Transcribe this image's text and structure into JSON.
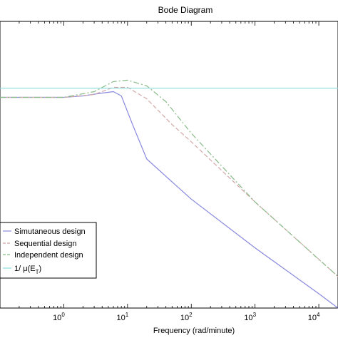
{
  "chart_data": {
    "type": "line",
    "title": "Bode Diagram",
    "xlabel": "Frequency  (rad/minute)",
    "ylabel": "",
    "xscale": "log",
    "xlim": [
      0.1,
      20000
    ],
    "ylim": [
      0,
      1
    ],
    "grid": false,
    "legend_position": "bottom-left",
    "x_ticks": [
      {
        "value": 1,
        "base": "10",
        "exp": "0"
      },
      {
        "value": 10,
        "base": "10",
        "exp": "1"
      },
      {
        "value": 100,
        "base": "10",
        "exp": "2"
      },
      {
        "value": 1000,
        "base": "10",
        "exp": "3"
      },
      {
        "value": 10000,
        "base": "10",
        "exp": "4"
      }
    ],
    "series": [
      {
        "name": "Simutaneous design",
        "color": "#8888dd",
        "dash": "none",
        "x": [
          0.1,
          1,
          2,
          4,
          6,
          8,
          12,
          20,
          50,
          100,
          1000,
          10000,
          20000
        ],
        "y": [
          0.735,
          0.735,
          0.74,
          0.75,
          0.755,
          0.74,
          0.64,
          0.52,
          0.44,
          0.38,
          0.21,
          0.05,
          0.0
        ]
      },
      {
        "name": "Sequential design",
        "color": "#d4a8a8",
        "dash": "6,3",
        "x": [
          0.1,
          1,
          3,
          6,
          10,
          20,
          50,
          100,
          1000,
          10000,
          20000
        ],
        "y": [
          0.735,
          0.735,
          0.745,
          0.77,
          0.77,
          0.73,
          0.64,
          0.58,
          0.37,
          0.17,
          0.11
        ]
      },
      {
        "name": "Independent design",
        "color": "#88bb88",
        "dash": "8,3,2,3",
        "x": [
          0.1,
          1,
          3,
          6,
          10,
          20,
          40,
          100,
          1000,
          10000,
          20000
        ],
        "y": [
          0.735,
          0.735,
          0.755,
          0.79,
          0.795,
          0.775,
          0.72,
          0.61,
          0.37,
          0.17,
          0.11
        ]
      },
      {
        "name": "1/ μ(E",
        "name_sub": "T",
        "name_suffix": ")",
        "color": "#88dddd",
        "dash": "none",
        "x": [
          0.1,
          20000
        ],
        "y": [
          0.767,
          0.767
        ]
      }
    ]
  }
}
